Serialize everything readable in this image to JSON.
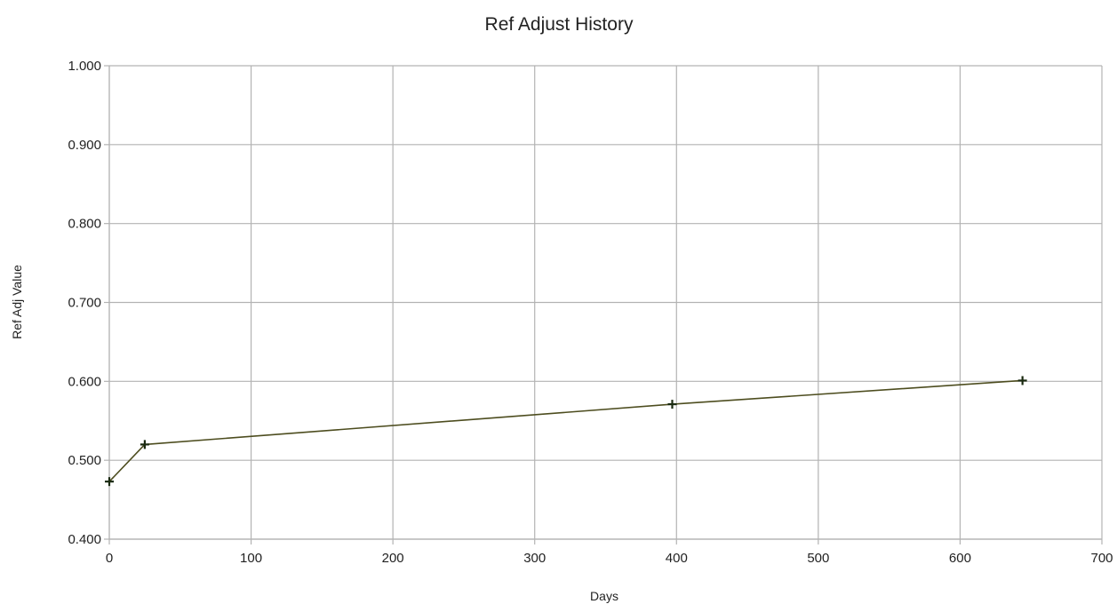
{
  "chart_data": {
    "type": "line",
    "title": "Ref Adjust History",
    "xlabel": "Days",
    "ylabel": "Ref Adj Value",
    "xlim": [
      0,
      700
    ],
    "ylim": [
      0.4,
      1.0
    ],
    "x_ticks": [
      0,
      100,
      200,
      300,
      400,
      500,
      600,
      700
    ],
    "x_tick_labels": [
      "0",
      "100",
      "200",
      "300",
      "400",
      "500",
      "600",
      "700"
    ],
    "y_ticks": [
      0.4,
      0.5,
      0.6,
      0.7,
      0.8,
      0.9,
      1.0
    ],
    "y_tick_labels": [
      "0.400",
      "0.500",
      "0.600",
      "0.700",
      "0.800",
      "0.900",
      "1.000"
    ],
    "grid": true,
    "legend": "none",
    "series": [
      {
        "color": "#4d4d1f",
        "marker_color": "#1a2a10",
        "marker": "plus",
        "x": [
          0,
          25,
          397,
          644
        ],
        "y": [
          0.473,
          0.52,
          0.571,
          0.601
        ]
      }
    ]
  }
}
